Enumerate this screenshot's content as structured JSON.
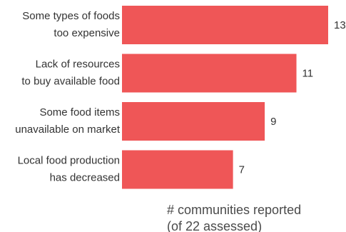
{
  "chart_data": {
    "type": "bar",
    "orientation": "horizontal",
    "categories": [
      [
        "Some types of foods",
        "too expensive"
      ],
      [
        "Lack of resources",
        "to buy available food"
      ],
      [
        "Some food items",
        "unavailable on market"
      ],
      [
        "Local food production",
        "has decreased"
      ]
    ],
    "values": [
      13,
      11,
      9,
      7
    ],
    "xlabel": [
      "# communities reported",
      "(of 22 assessed)"
    ],
    "xlim": [
      0,
      13
    ],
    "bar_color": "#ef5657",
    "grid": false,
    "legend": "none"
  }
}
